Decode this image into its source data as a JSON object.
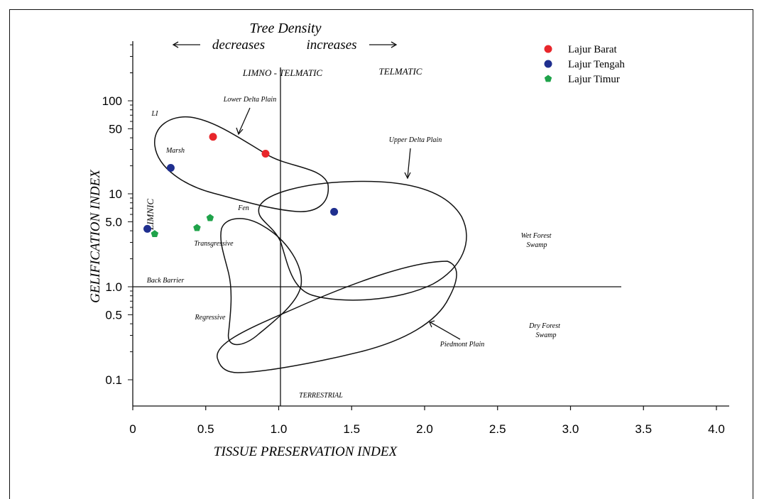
{
  "chart_data": {
    "type": "scatter",
    "title": "",
    "xlabel": "TISSUE PRESERVATION INDEX",
    "ylabel": "GELIFICATION INDEX",
    "x_ticks": [
      "0",
      "0.5",
      "1.0",
      "1.5",
      "2.0",
      "2.5",
      "3.0",
      "3.5",
      "4.0"
    ],
    "x_tick_values": [
      0,
      0.5,
      1.0,
      1.5,
      2.0,
      2.5,
      3.0,
      3.5,
      4.0
    ],
    "y_ticks": [
      "0.1",
      "0.5",
      "1.0",
      "5.0",
      "10",
      "50",
      "100"
    ],
    "y_tick_values": [
      0.1,
      0.5,
      1.0,
      5.0,
      10,
      50,
      100
    ],
    "xlim": [
      0,
      4.1
    ],
    "y_scale": "log",
    "ylim": [
      0.1,
      400
    ],
    "grid": false,
    "legend_position": "top-right",
    "series": [
      {
        "name": "Lajur Barat",
        "color": "#e8262b",
        "points": [
          [
            0.55,
            41
          ],
          [
            0.91,
            27
          ]
        ]
      },
      {
        "name": "Lajur Tengah",
        "color": "#1f2f8f",
        "points": [
          [
            0.26,
            19
          ],
          [
            0.1,
            4.2
          ],
          [
            1.38,
            6.4
          ]
        ]
      },
      {
        "name": "Lajur Timur",
        "color": "#1fa34a",
        "points": [
          [
            0.53,
            5.5
          ],
          [
            0.15,
            3.7
          ],
          [
            0.44,
            4.3
          ]
        ]
      }
    ],
    "header": {
      "title": "Tree Density",
      "left": "decreases",
      "right": "increases"
    },
    "region_labels": {
      "limno_telmatic": "LIMNO - TELMATIC",
      "telmatic": "TELMATIC",
      "limnic": "LIMNIC",
      "terrestrial": "TERRESTRIAL",
      "li": "LI",
      "marsh": "Marsh",
      "fen": "Fen",
      "transgressive": "Transgressive",
      "regressive": "Regressive",
      "back_barrier": "Back Barrier",
      "lower_delta_plain": "Lower Delta Plain",
      "upper_delta_plain": "Upper Delta Plain",
      "piedmont_plain": "Piedmont Plain",
      "wet_forest_swamp": [
        "Wet Forest",
        "Swamp"
      ],
      "dry_forest_swamp": [
        "Dry Forest",
        "Swamp"
      ]
    }
  }
}
